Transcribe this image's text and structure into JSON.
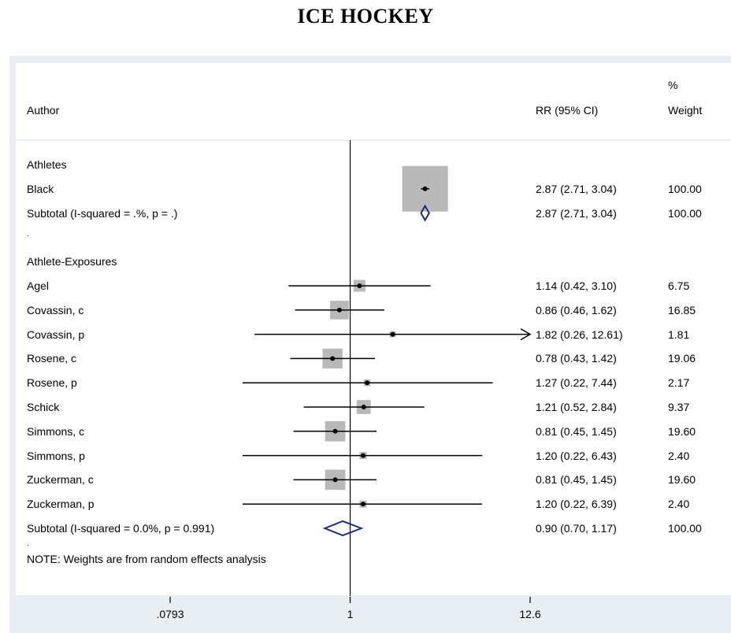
{
  "page": {
    "title": "ICE HOCKEY"
  },
  "header": {
    "author": "Author",
    "rr": "RR (95% CI)",
    "weight_top": "%",
    "weight": "Weight"
  },
  "note": "NOTE: Weights are from random effects analysis",
  "spacer_dots": [
    ".",
    "."
  ],
  "colors": {
    "box": "#b9b9b9",
    "diamond": "#1b2c7a",
    "line": "#000000",
    "frame": "#e8eef1"
  },
  "chart_data": {
    "type": "forest",
    "x_scale": "log",
    "xlim": [
      0.0793,
      12.6
    ],
    "x_ticks": [
      0.0793,
      1,
      12.6
    ],
    "x_tick_labels": [
      ".0793",
      "1",
      "12.6"
    ],
    "null_line": 1,
    "rows": [
      {
        "kind": "group",
        "label": "Athletes"
      },
      {
        "kind": "study",
        "label": "Black",
        "rr": 2.87,
        "lo": 2.71,
        "hi": 3.04,
        "ci_text": "2.87 (2.71, 3.04)",
        "weight": 100.0,
        "weight_text": "100.00"
      },
      {
        "kind": "subtotal",
        "label": "Subtotal  (I-squared = .%, p = .)",
        "rr": 2.87,
        "lo": 2.71,
        "hi": 3.04,
        "ci_text": "2.87 (2.71, 3.04)",
        "weight_text": "100.00"
      },
      {
        "kind": "spacer",
        "label": "."
      },
      {
        "kind": "group",
        "label": "Athlete-Exposures"
      },
      {
        "kind": "study",
        "label": "Agel",
        "rr": 1.14,
        "lo": 0.42,
        "hi": 3.1,
        "ci_text": "1.14 (0.42, 3.10)",
        "weight": 6.75,
        "weight_text": "6.75"
      },
      {
        "kind": "study",
        "label": "Covassin, c",
        "rr": 0.86,
        "lo": 0.46,
        "hi": 1.62,
        "ci_text": "0.86 (0.46, 1.62)",
        "weight": 16.85,
        "weight_text": "16.85"
      },
      {
        "kind": "study",
        "label": "Covassin, p",
        "rr": 1.82,
        "lo": 0.26,
        "hi": 12.61,
        "ci_text": "1.82 (0.26, 12.61)",
        "weight": 1.81,
        "weight_text": "1.81",
        "arrow_right": true
      },
      {
        "kind": "study",
        "label": "Rosene, c",
        "rr": 0.78,
        "lo": 0.43,
        "hi": 1.42,
        "ci_text": "0.78 (0.43, 1.42)",
        "weight": 19.06,
        "weight_text": "19.06"
      },
      {
        "kind": "study",
        "label": "Rosene, p",
        "rr": 1.27,
        "lo": 0.22,
        "hi": 7.44,
        "ci_text": "1.27 (0.22, 7.44)",
        "weight": 2.17,
        "weight_text": "2.17"
      },
      {
        "kind": "study",
        "label": "Schick",
        "rr": 1.21,
        "lo": 0.52,
        "hi": 2.84,
        "ci_text": "1.21 (0.52, 2.84)",
        "weight": 9.37,
        "weight_text": "9.37"
      },
      {
        "kind": "study",
        "label": "Simmons, c",
        "rr": 0.81,
        "lo": 0.45,
        "hi": 1.45,
        "ci_text": "0.81 (0.45, 1.45)",
        "weight": 19.6,
        "weight_text": "19.60"
      },
      {
        "kind": "study",
        "label": "Simmons, p",
        "rr": 1.2,
        "lo": 0.22,
        "hi": 6.43,
        "ci_text": "1.20 (0.22, 6.43)",
        "weight": 2.4,
        "weight_text": "2.40"
      },
      {
        "kind": "study",
        "label": "Zuckerman, c",
        "rr": 0.81,
        "lo": 0.45,
        "hi": 1.45,
        "ci_text": "0.81 (0.45, 1.45)",
        "weight": 19.6,
        "weight_text": "19.60"
      },
      {
        "kind": "study",
        "label": "Zuckerman, p",
        "rr": 1.2,
        "lo": 0.22,
        "hi": 6.39,
        "ci_text": "1.20 (0.22, 6.39)",
        "weight": 2.4,
        "weight_text": "2.40"
      },
      {
        "kind": "subtotal",
        "label": "Subtotal  (I-squared = 0.0%, p = 0.991)",
        "rr": 0.9,
        "lo": 0.7,
        "hi": 1.17,
        "ci_text": "0.90 (0.70, 1.17)",
        "weight_text": "100.00"
      }
    ]
  }
}
